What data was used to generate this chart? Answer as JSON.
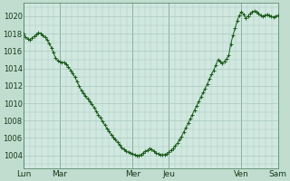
{
  "background_color": "#c0ddd0",
  "plot_bg_color": "#d0e8e0",
  "grid_color": "#a8c8bc",
  "line_color": "#1a5c1a",
  "marker_color": "#1a5c1a",
  "day_labels": [
    "Lun",
    "Mar",
    "Mer",
    "Jeu",
    "Ven",
    "Sam"
  ],
  "ylim": [
    1002.5,
    1021.5
  ],
  "yticks": [
    1004,
    1006,
    1008,
    1010,
    1012,
    1014,
    1016,
    1018,
    1020
  ],
  "xlim": [
    0,
    168
  ],
  "pressure_values": [
    1018.0,
    1017.6,
    1017.4,
    1017.3,
    1017.5,
    1017.7,
    1017.9,
    1018.1,
    1018.0,
    1017.8,
    1017.6,
    1017.3,
    1016.9,
    1016.4,
    1015.8,
    1015.2,
    1014.9,
    1014.8,
    1014.7,
    1014.7,
    1014.5,
    1014.2,
    1013.8,
    1013.4,
    1013.0,
    1012.5,
    1012.0,
    1011.5,
    1011.1,
    1010.8,
    1010.5,
    1010.2,
    1009.9,
    1009.5,
    1009.1,
    1008.7,
    1008.3,
    1007.9,
    1007.5,
    1007.1,
    1006.8,
    1006.4,
    1006.1,
    1005.8,
    1005.5,
    1005.2,
    1004.9,
    1004.7,
    1004.5,
    1004.4,
    1004.3,
    1004.2,
    1004.1,
    1004.0,
    1004.0,
    1004.1,
    1004.3,
    1004.5,
    1004.6,
    1004.8,
    1004.7,
    1004.5,
    1004.3,
    1004.2,
    1004.1,
    1004.05,
    1004.1,
    1004.2,
    1004.4,
    1004.6,
    1004.8,
    1005.1,
    1005.4,
    1005.8,
    1006.2,
    1006.7,
    1007.2,
    1007.7,
    1008.2,
    1008.7,
    1009.2,
    1009.7,
    1010.2,
    1010.7,
    1011.2,
    1011.7,
    1012.2,
    1012.8,
    1013.3,
    1013.8,
    1014.4,
    1015.0,
    1014.8,
    1014.6,
    1014.8,
    1015.1,
    1015.5,
    1016.8,
    1017.8,
    1018.6,
    1019.5,
    1020.1,
    1020.5,
    1020.2,
    1019.8,
    1020.0,
    1020.3,
    1020.5,
    1020.6,
    1020.5,
    1020.3,
    1020.1,
    1020.0,
    1020.1,
    1020.2,
    1020.1,
    1020.0,
    1019.9,
    1020.0,
    1020.1
  ]
}
